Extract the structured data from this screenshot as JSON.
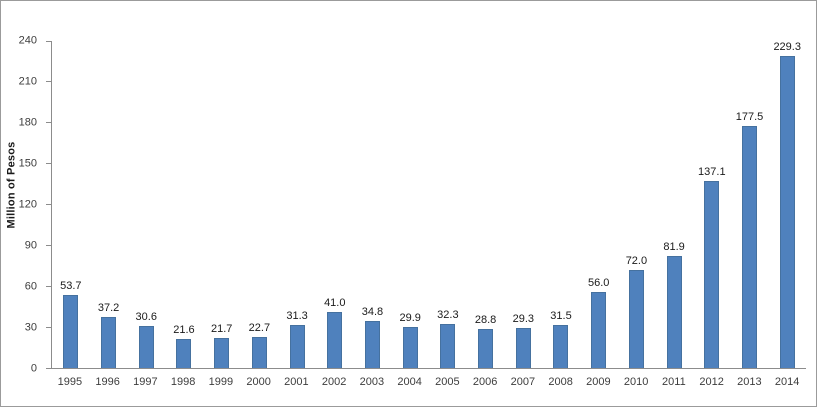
{
  "chart_data": {
    "type": "bar",
    "title": "",
    "xlabel": "",
    "ylabel": "Million of Pesos",
    "categories": [
      "1995",
      "1996",
      "1997",
      "1998",
      "1999",
      "2000",
      "2001",
      "2002",
      "2003",
      "2004",
      "2005",
      "2006",
      "2007",
      "2008",
      "2009",
      "2010",
      "2011",
      "2012",
      "2013",
      "2014"
    ],
    "values": [
      53.7,
      37.2,
      30.6,
      21.6,
      21.7,
      22.7,
      31.3,
      41.0,
      34.8,
      29.9,
      32.3,
      28.8,
      29.3,
      31.5,
      56.0,
      72.0,
      81.9,
      137.1,
      177.5,
      229.3
    ],
    "ylim": [
      0,
      240
    ],
    "yticks": [
      0,
      30,
      60,
      90,
      120,
      150,
      180,
      210,
      240
    ],
    "value_label_decimals": 1,
    "bar_color": "#4f81bd",
    "grid": "off",
    "legend": "none"
  }
}
